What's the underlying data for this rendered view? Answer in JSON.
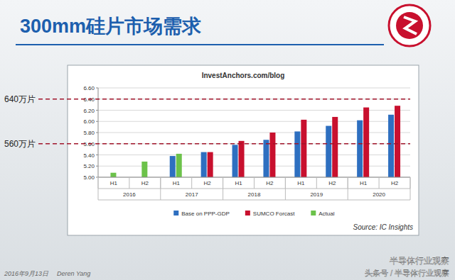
{
  "chart_data": {
    "type": "bar",
    "title": "300mm硅片市场需求",
    "subtitle": "InvestAnchors.com/blog",
    "source": "Source: IC Insights",
    "categories": [
      "H1",
      "H2",
      "H1",
      "H2",
      "H1",
      "H2",
      "H1",
      "H2",
      "H1",
      "H2"
    ],
    "category_groups": [
      "2016",
      "2017",
      "2018",
      "2019",
      "2020"
    ],
    "series": [
      {
        "name": "Base on PPP-GDP",
        "color": "#2e6fc0",
        "values": [
          null,
          null,
          5.38,
          5.45,
          5.58,
          5.67,
          5.82,
          5.92,
          6.02,
          6.12
        ]
      },
      {
        "name": "SUMCO Forcast",
        "color": "#c8102e",
        "values": [
          null,
          null,
          null,
          5.45,
          5.65,
          5.8,
          6.03,
          6.08,
          6.25,
          6.28
        ]
      },
      {
        "name": "Actual",
        "color": "#6cc24a",
        "values": [
          5.08,
          5.28,
          5.42,
          null,
          null,
          null,
          null,
          null,
          null,
          null
        ]
      }
    ],
    "ylim": [
      5,
      6.6
    ],
    "yticks": [
      {
        "value": 5,
        "label": "5.00"
      },
      {
        "value": 5.2,
        "label": "5.20"
      },
      {
        "value": 5.4,
        "label": "5.40"
      },
      {
        "value": 5.6,
        "label": "5.60"
      },
      {
        "value": 5.8,
        "label": "5.80"
      },
      {
        "value": 6,
        "label": "6.00"
      },
      {
        "value": 6.2,
        "label": "6.20"
      },
      {
        "value": 6.4,
        "label": "6.40"
      },
      {
        "value": 6.6,
        "label": "6.60"
      }
    ],
    "grid": true,
    "legend": "bottom",
    "reference_lines": [
      {
        "value": 6.4,
        "label": "640万片"
      },
      {
        "value": 5.6,
        "label": "560万片"
      }
    ]
  },
  "footer": {
    "date": "2016年9月13日",
    "author": "Deren Yang",
    "watermark": "半导体行业观察",
    "channel": "头条号 / 半导体行业观察"
  }
}
